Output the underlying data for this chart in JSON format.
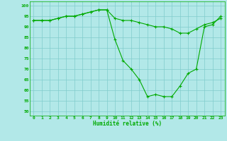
{
  "xlabel": "Humidité relative (%)",
  "background_color": "#b2e8e8",
  "grid_color": "#80cccc",
  "line_color": "#00aa00",
  "x_ticks": [
    0,
    1,
    2,
    3,
    4,
    5,
    6,
    7,
    8,
    9,
    10,
    11,
    12,
    13,
    14,
    15,
    16,
    17,
    18,
    19,
    20,
    21,
    22,
    23
  ],
  "y_ticks": [
    50,
    55,
    60,
    65,
    70,
    75,
    80,
    85,
    90,
    95,
    100
  ],
  "ylim": [
    48,
    102
  ],
  "xlim": [
    -0.5,
    23.5
  ],
  "series1": {
    "x": [
      0,
      1,
      2,
      3,
      4,
      5,
      6,
      7,
      8,
      9,
      10,
      11,
      12,
      13,
      14,
      15,
      16,
      17,
      18,
      19,
      20,
      21,
      22,
      23
    ],
    "y": [
      93,
      93,
      93,
      94,
      95,
      95,
      96,
      97,
      98,
      98,
      94,
      93,
      93,
      92,
      91,
      90,
      90,
      89,
      87,
      87,
      89,
      91,
      92,
      94
    ]
  },
  "series2": {
    "x": [
      0,
      1,
      2,
      3,
      4,
      5,
      6,
      7,
      8,
      9,
      10,
      11,
      12,
      13,
      14,
      15,
      16,
      17,
      18,
      19,
      20,
      21,
      22,
      23
    ],
    "y": [
      93,
      93,
      93,
      94,
      95,
      95,
      96,
      97,
      98,
      98,
      84,
      74,
      70,
      65,
      57,
      58,
      57,
      57,
      62,
      68,
      70,
      90,
      91,
      95
    ]
  }
}
